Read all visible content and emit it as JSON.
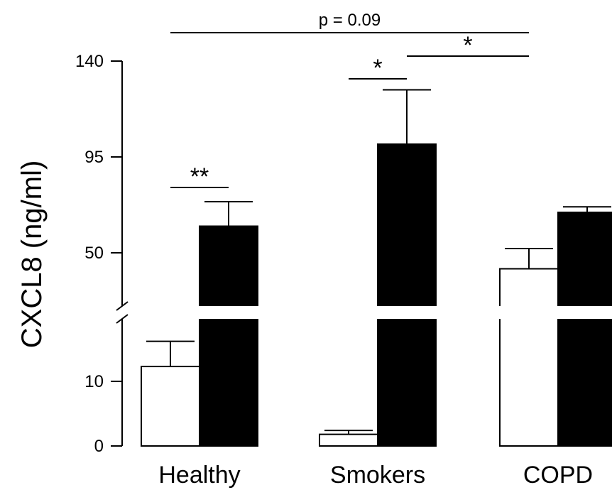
{
  "chart_data": {
    "type": "bar",
    "title": "",
    "xlabel": "",
    "ylabel": "CXCL8 (ng/ml)",
    "categories": [
      "Healthy",
      "Smokers",
      "COPD"
    ],
    "axis_break": true,
    "lower_ylim": [
      0,
      20
    ],
    "upper_ylim": [
      25,
      140
    ],
    "lower_ticks": [
      "0",
      "10"
    ],
    "upper_ticks": [
      "50",
      "95",
      "140"
    ],
    "series": [
      {
        "fill": "#ffffff",
        "values": [
          12.3,
          1.8,
          42.5
        ],
        "errors": [
          3.9,
          0.6,
          9.5
        ]
      },
      {
        "fill": "#000000",
        "values": [
          62.5,
          101,
          69
        ],
        "errors": [
          11.5,
          25.5,
          2.6
        ]
      }
    ],
    "annotations": [
      {
        "text": "**",
        "from": "Healthy:0",
        "to": "Healthy:1"
      },
      {
        "text": "*",
        "from": "Smokers:0",
        "to": "Smokers:1"
      },
      {
        "text": "*",
        "from": "Smokers:1",
        "to": "COPD:0"
      },
      {
        "text": "p = 0.09",
        "from": "Healthy:0",
        "to": "COPD:0"
      }
    ]
  }
}
